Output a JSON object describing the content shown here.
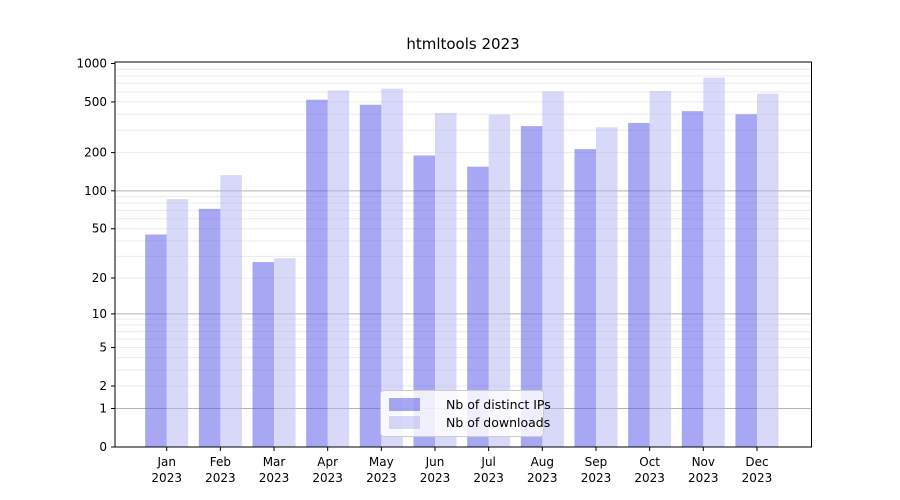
{
  "chart_data": {
    "type": "bar",
    "title": "htmltools 2023",
    "year_label": "2023",
    "categories": [
      "Jan",
      "Feb",
      "Mar",
      "Apr",
      "May",
      "Jun",
      "Jul",
      "Aug",
      "Sep",
      "Oct",
      "Nov",
      "Dec"
    ],
    "series": [
      {
        "name": "Nb of distinct IPs",
        "color": "#5050e8",
        "opacity": 0.5,
        "color_on_white": "#a8a8f4",
        "values": [
          45,
          72,
          27,
          520,
          475,
          190,
          155,
          323,
          213,
          342,
          423,
          400
        ]
      },
      {
        "name": "Nb of downloads",
        "color": "#b2b2f1",
        "opacity": 0.5,
        "color_on_white": "#d9d9f8",
        "values": [
          86,
          133,
          29,
          615,
          635,
          410,
          398,
          605,
          316,
          608,
          775,
          580
        ]
      }
    ],
    "y_axis": {
      "scale": "log1p",
      "ylim": [
        0,
        1000
      ],
      "tick_labels": [
        0,
        1,
        2,
        5,
        10,
        20,
        50,
        100,
        200,
        500,
        1000
      ]
    },
    "x_axis": {
      "tick_label_line2": "2023"
    },
    "grid": {
      "major_values": [
        1,
        10,
        100
      ],
      "minor_values": [
        2,
        3,
        4,
        5,
        6,
        7,
        8,
        9,
        20,
        30,
        40,
        50,
        60,
        70,
        80,
        90,
        200,
        300,
        400,
        500,
        600,
        700,
        800,
        900
      ],
      "major_color": "#b4b4b4",
      "minor_color": "#ececec"
    },
    "legend": {
      "position": "lower center"
    },
    "axis_color": "#000000"
  }
}
